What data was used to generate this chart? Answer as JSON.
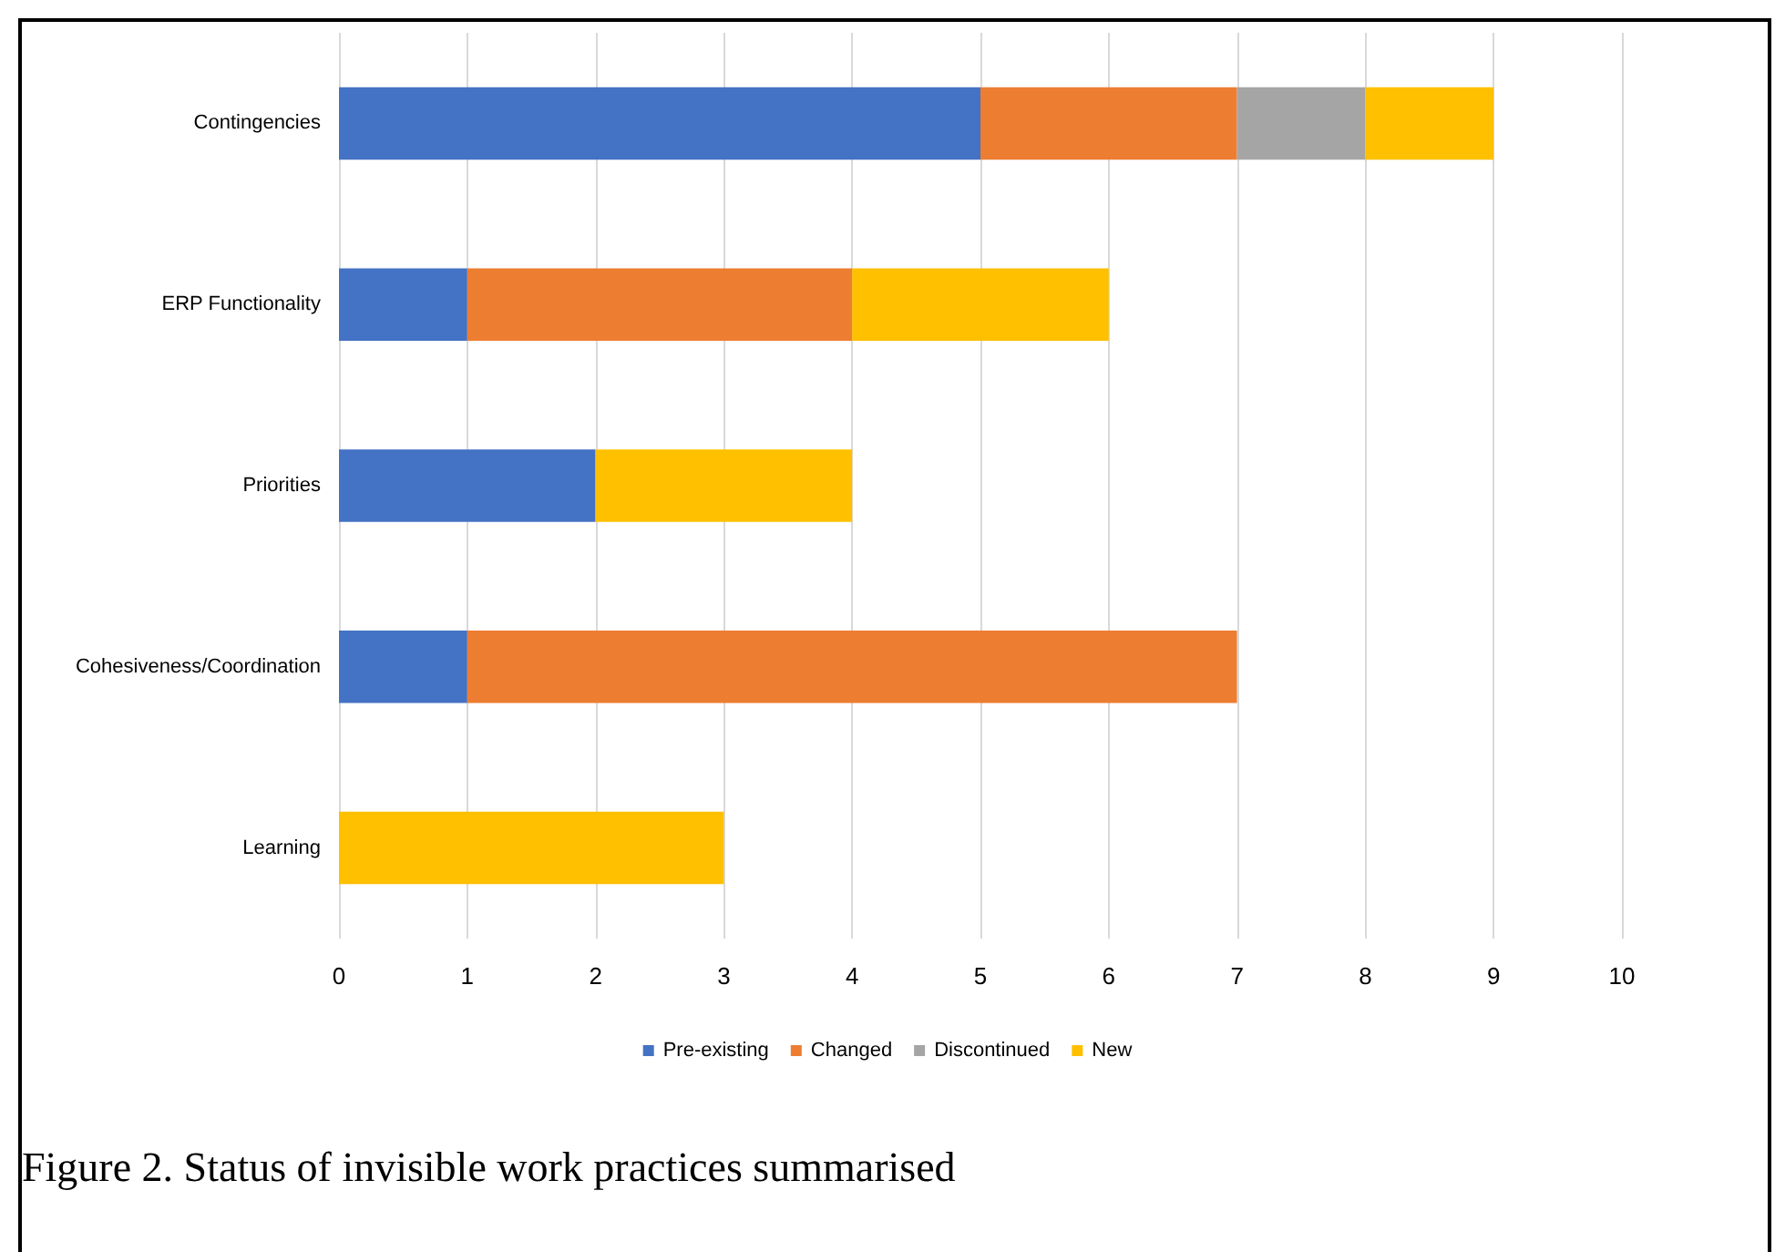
{
  "chart_data": {
    "type": "bar",
    "orientation": "horizontal",
    "stacked": true,
    "categories": [
      "Contingencies",
      "ERP Functionality",
      "Priorities",
      "Cohesiveness/Coordination",
      "Learning"
    ],
    "series": [
      {
        "name": "Pre-existing",
        "color": "#4472c4",
        "values": [
          5,
          1,
          2,
          1,
          0
        ]
      },
      {
        "name": "Changed",
        "color": "#ed7d31",
        "values": [
          2,
          3,
          0,
          6,
          0
        ]
      },
      {
        "name": "Discontinued",
        "color": "#a5a5a5",
        "values": [
          1,
          0,
          0,
          0,
          0
        ]
      },
      {
        "name": "New",
        "color": "#ffc000",
        "values": [
          1,
          2,
          2,
          0,
          3
        ]
      }
    ],
    "xlim": [
      0,
      10
    ],
    "xticks": [
      0,
      1,
      2,
      3,
      4,
      5,
      6,
      7,
      8,
      9,
      10
    ],
    "grid": "x",
    "legend": "bottom",
    "annotations": [
      "Figure 2.  Status of invisible work practices summarised"
    ]
  }
}
